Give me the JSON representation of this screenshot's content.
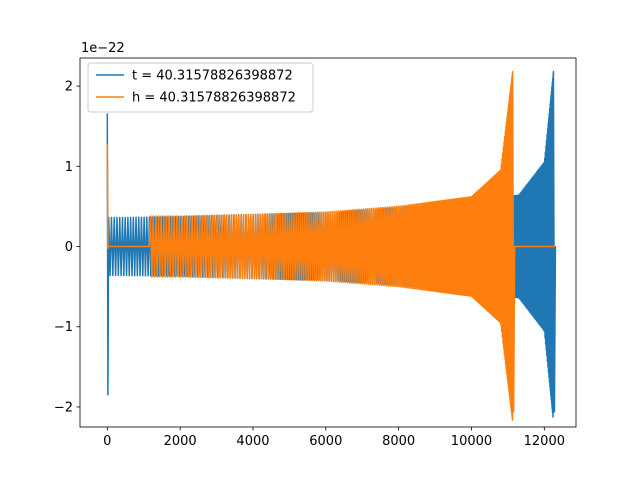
{
  "chart_data": {
    "type": "line",
    "title": "",
    "xlabel": "",
    "ylabel": "",
    "y_scale_label": "1e−22",
    "xlim": [
      -750,
      12870
    ],
    "ylim": [
      -2.25,
      2.35
    ],
    "x_ticks": [
      0,
      2000,
      4000,
      6000,
      8000,
      10000,
      12000
    ],
    "x_tick_labels": [
      "0",
      "2000",
      "4000",
      "6000",
      "8000",
      "10000",
      "12000"
    ],
    "y_ticks": [
      -2,
      -1,
      0,
      1,
      2
    ],
    "y_tick_labels": [
      "−2",
      "−1",
      "0",
      "1",
      "2"
    ],
    "grid": false,
    "legend_position": "top-left",
    "series": [
      {
        "name": "t = 40.31578826398872",
        "color": "#1f77b4",
        "x_range": [
          0,
          12300
        ],
        "initial_spike": {
          "x": 0,
          "max": 1.66,
          "min": -1.85
        },
        "oscillation_start": 0,
        "merger_x": 12250,
        "peak_amplitude": 2.18,
        "trough_amplitude": -2.06,
        "post_merger_value": 0.0,
        "base_amplitude": 0.36,
        "amplitude_at_x": [
          [
            0,
            0.36
          ],
          [
            2000,
            0.37
          ],
          [
            4000,
            0.4
          ],
          [
            6000,
            0.42
          ],
          [
            8000,
            0.48
          ],
          [
            10000,
            0.56
          ],
          [
            11000,
            0.62
          ],
          [
            11300,
            0.64
          ],
          [
            12000,
            1.05
          ],
          [
            12250,
            2.18
          ]
        ]
      },
      {
        "name": "h = 40.31578826398872",
        "color": "#ff7f0e",
        "x_range": [
          0,
          12300
        ],
        "initial_spike": {
          "x": 0,
          "max": 1.28,
          "min": -0.02
        },
        "oscillation_start": 1150,
        "merger_x": 11130,
        "peak_amplitude": 2.18,
        "trough_amplitude": -2.06,
        "post_merger_value": 0.0,
        "base_amplitude": 0.38,
        "amplitude_at_x": [
          [
            0,
            0.38
          ],
          [
            2000,
            0.38
          ],
          [
            4000,
            0.4
          ],
          [
            6000,
            0.43
          ],
          [
            8000,
            0.5
          ],
          [
            10000,
            0.62
          ],
          [
            10800,
            0.95
          ],
          [
            11130,
            2.18
          ]
        ]
      }
    ]
  }
}
